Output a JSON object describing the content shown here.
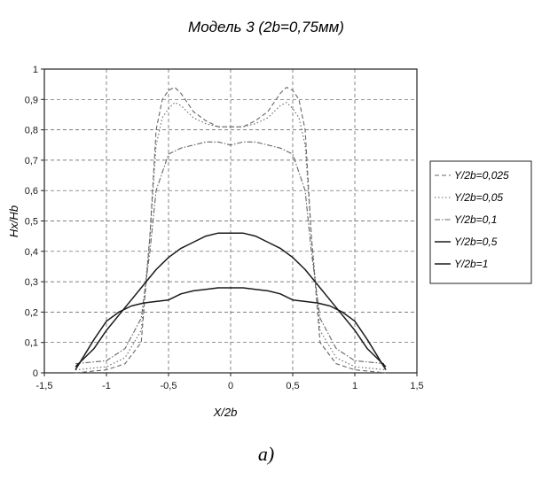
{
  "chart_data": {
    "type": "line",
    "title": "Модель 3 (2b=0,75мм)",
    "xlabel": "X/2b",
    "ylabel": "Hx/Hb",
    "xlim": [
      -1.5,
      1.5
    ],
    "ylim": [
      0,
      1
    ],
    "x_ticks": [
      "-1,5",
      "-1",
      "-0,5",
      "0",
      "0,5",
      "1",
      "1,5"
    ],
    "y_ticks": [
      "0",
      "0,1",
      "0,2",
      "0,3",
      "0,4",
      "0,5",
      "0,6",
      "0,7",
      "0,8",
      "0,9",
      "1"
    ],
    "grid": true,
    "legend_position": "right",
    "caption": "a)",
    "series": [
      {
        "name": "Y/2b=0,025",
        "style": "dashed",
        "x": [
          -1.25,
          -1.0,
          -0.85,
          -0.72,
          -0.65,
          -0.6,
          -0.55,
          -0.5,
          -0.45,
          -0.4,
          -0.3,
          -0.2,
          -0.1,
          0,
          0.1,
          0.2,
          0.3,
          0.4,
          0.45,
          0.5,
          0.55,
          0.6,
          0.65,
          0.72,
          0.85,
          1.0,
          1.25
        ],
        "y": [
          0.0,
          0.01,
          0.03,
          0.1,
          0.45,
          0.8,
          0.9,
          0.93,
          0.94,
          0.92,
          0.86,
          0.83,
          0.81,
          0.81,
          0.81,
          0.83,
          0.86,
          0.92,
          0.94,
          0.93,
          0.9,
          0.8,
          0.45,
          0.1,
          0.03,
          0.01,
          0.0
        ]
      },
      {
        "name": "Y/2b=0,05",
        "style": "dotted",
        "x": [
          -1.25,
          -1.0,
          -0.85,
          -0.72,
          -0.65,
          -0.6,
          -0.55,
          -0.5,
          -0.45,
          -0.4,
          -0.3,
          -0.2,
          -0.1,
          0,
          0.1,
          0.2,
          0.3,
          0.4,
          0.45,
          0.5,
          0.55,
          0.6,
          0.65,
          0.72,
          0.85,
          1.0,
          1.25
        ],
        "y": [
          0.01,
          0.02,
          0.05,
          0.14,
          0.45,
          0.75,
          0.84,
          0.87,
          0.89,
          0.88,
          0.84,
          0.82,
          0.81,
          0.81,
          0.81,
          0.82,
          0.84,
          0.88,
          0.89,
          0.87,
          0.84,
          0.75,
          0.45,
          0.14,
          0.05,
          0.02,
          0.01
        ]
      },
      {
        "name": "Y/2b=0,1",
        "style": "dash-dot",
        "x": [
          -1.25,
          -1.0,
          -0.85,
          -0.72,
          -0.65,
          -0.6,
          -0.5,
          -0.4,
          -0.3,
          -0.2,
          -0.1,
          0,
          0.1,
          0.2,
          0.3,
          0.4,
          0.5,
          0.6,
          0.65,
          0.72,
          0.85,
          1.0,
          1.25
        ],
        "y": [
          0.03,
          0.04,
          0.08,
          0.18,
          0.4,
          0.6,
          0.72,
          0.74,
          0.75,
          0.76,
          0.76,
          0.75,
          0.76,
          0.76,
          0.75,
          0.74,
          0.72,
          0.6,
          0.4,
          0.18,
          0.08,
          0.04,
          0.03
        ]
      },
      {
        "name": "Y/2b=0,5",
        "style": "solid",
        "x": [
          -1.25,
          -1.1,
          -1.0,
          -0.9,
          -0.8,
          -0.7,
          -0.6,
          -0.5,
          -0.4,
          -0.3,
          -0.2,
          -0.1,
          0,
          0.1,
          0.2,
          0.3,
          0.4,
          0.5,
          0.6,
          0.7,
          0.8,
          0.9,
          1.0,
          1.1,
          1.25
        ],
        "y": [
          0.02,
          0.08,
          0.14,
          0.19,
          0.24,
          0.29,
          0.34,
          0.38,
          0.41,
          0.43,
          0.45,
          0.46,
          0.46,
          0.46,
          0.45,
          0.43,
          0.41,
          0.38,
          0.34,
          0.29,
          0.24,
          0.19,
          0.14,
          0.08,
          0.02
        ]
      },
      {
        "name": "Y/2b=1",
        "style": "solid",
        "x": [
          -1.25,
          -1.1,
          -1.0,
          -0.9,
          -0.8,
          -0.7,
          -0.6,
          -0.5,
          -0.4,
          -0.3,
          -0.2,
          -0.1,
          0,
          0.1,
          0.2,
          0.3,
          0.4,
          0.5,
          0.6,
          0.7,
          0.8,
          0.9,
          1.0,
          1.1,
          1.25
        ],
        "y": [
          0.01,
          0.11,
          0.17,
          0.2,
          0.22,
          0.23,
          0.235,
          0.24,
          0.26,
          0.27,
          0.275,
          0.28,
          0.28,
          0.28,
          0.275,
          0.27,
          0.26,
          0.24,
          0.235,
          0.23,
          0.22,
          0.2,
          0.17,
          0.11,
          0.01
        ]
      }
    ]
  }
}
